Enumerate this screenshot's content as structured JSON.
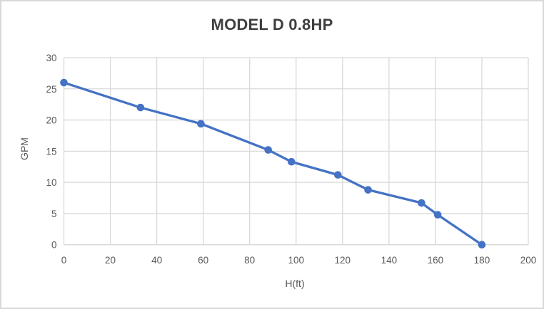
{
  "chart_data": {
    "type": "line",
    "title": "MODEL D 0.8HP",
    "xlabel": "H(ft)",
    "ylabel": "GPM",
    "series": [
      {
        "x": [
          0,
          33,
          59,
          88,
          98,
          118,
          131,
          154,
          161,
          180
        ],
        "y": [
          26,
          22,
          19.4,
          15.2,
          13.3,
          11.2,
          8.8,
          6.7,
          4.8,
          0
        ]
      }
    ],
    "xlim": [
      0,
      200
    ],
    "ylim": [
      0,
      30
    ],
    "xticks": [
      0,
      20,
      40,
      60,
      80,
      100,
      120,
      140,
      160,
      180,
      200
    ],
    "yticks": [
      0,
      5,
      10,
      15,
      20,
      25,
      30
    ],
    "grid": true,
    "legend_position": "none",
    "colors": {
      "series_line": "#4472c4",
      "marker_fill": "#4472c4",
      "gridline": "#d9d9d9",
      "axis_line": "#d9d9d9",
      "tick_label": "#595959",
      "title_text": "#3f3f3f",
      "axis_title_text": "#595959",
      "plot_background": "#ffffff",
      "chart_border": "#d9d9d9"
    }
  }
}
